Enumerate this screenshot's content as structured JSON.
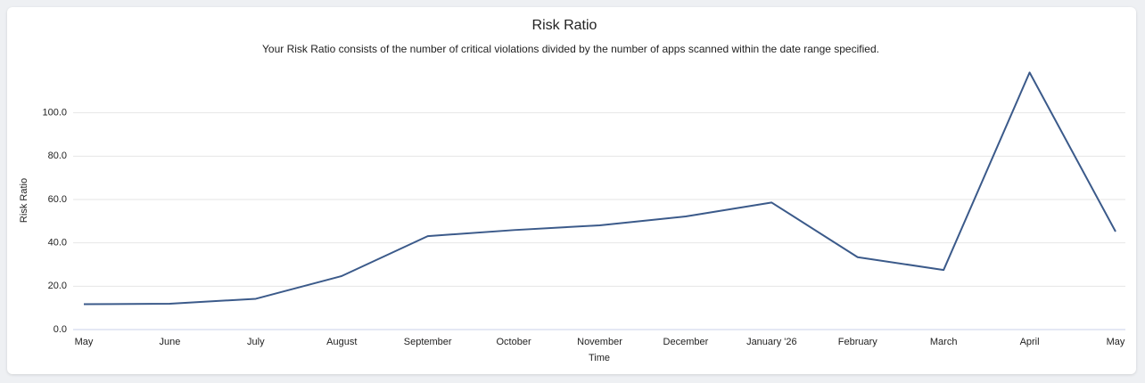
{
  "chart_data": {
    "type": "line",
    "title": "Risk Ratio",
    "subtitle": "Your Risk Ratio consists of the number of critical violations divided by the number of apps scanned within the date range specified.",
    "x_label": "Time",
    "y_label": "Risk Ratio",
    "categories": [
      "May",
      "June",
      "July",
      "August",
      "September",
      "October",
      "November",
      "December",
      "January '26",
      "February",
      "March",
      "April",
      "May"
    ],
    "series": [
      {
        "name": "Risk Ratio",
        "color": "#3b5a8a",
        "values": [
          11.7,
          11.9,
          14.2,
          24.7,
          43.1,
          45.9,
          48.1,
          52.2,
          58.6,
          33.4,
          27.5,
          118.6,
          45.2
        ]
      }
    ],
    "ylim": [
      0,
      120
    ],
    "yticks": [
      {
        "value": 0,
        "label": "0.0"
      },
      {
        "value": 20,
        "label": "20.0"
      },
      {
        "value": 40,
        "label": "40.0"
      },
      {
        "value": 60,
        "label": "60.0"
      },
      {
        "value": 80,
        "label": "80.0"
      },
      {
        "value": 100,
        "label": "100.0"
      }
    ],
    "grid": true
  }
}
